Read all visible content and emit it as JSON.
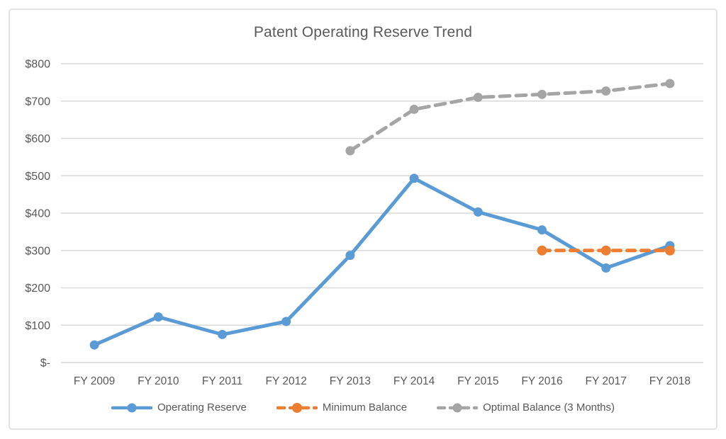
{
  "chart_data": {
    "type": "line",
    "title": "Patent Operating Reserve Trend",
    "xlabel": "",
    "ylabel": "",
    "categories": [
      "FY 2009",
      "FY 2010",
      "FY 2011",
      "FY 2012",
      "FY 2013",
      "FY 2014",
      "FY 2015",
      "FY 2016",
      "FY 2017",
      "FY 2018"
    ],
    "series": [
      {
        "name": "Operating Reserve",
        "color": "#5B9BD5",
        "style": "solid",
        "values": [
          47,
          122,
          75,
          110,
          287,
          493,
          403,
          355,
          253,
          313
        ]
      },
      {
        "name": "Minimum Balance",
        "color": "#ED7D31",
        "style": "dashed",
        "values": [
          null,
          null,
          null,
          null,
          null,
          null,
          null,
          300,
          300,
          300
        ]
      },
      {
        "name": "Optimal Balance (3 Months)",
        "color": "#A5A5A5",
        "style": "dashed",
        "values": [
          null,
          null,
          null,
          null,
          567,
          678,
          710,
          718,
          727,
          747
        ]
      }
    ],
    "ylim": [
      0,
      800
    ],
    "y_tick_labels": [
      "$-",
      "$100",
      "$200",
      "$300",
      "$400",
      "$500",
      "$600",
      "$700",
      "$800"
    ],
    "grid": true,
    "legend_position": "bottom",
    "grid_color": "#D9D9D9",
    "text_color": "#595959"
  }
}
